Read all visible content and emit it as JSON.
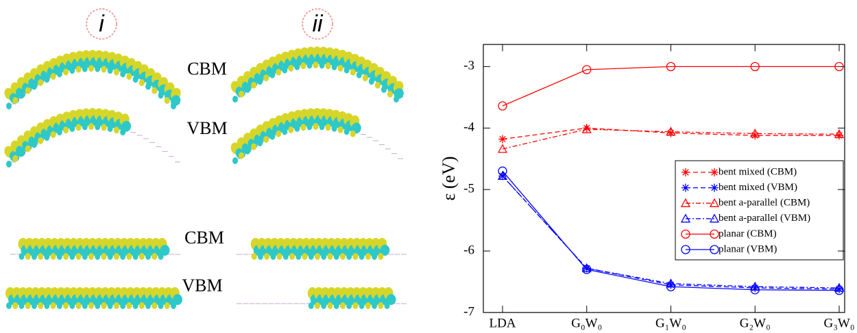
{
  "panel_labels": [
    "i",
    "ii"
  ],
  "orbital_labels": [
    "CBM",
    "VBM",
    "CBM",
    "VBM"
  ],
  "chart_data": {
    "type": "line",
    "y_label": "ε (eV)",
    "categories": [
      "LDA",
      "G₀W₀",
      "G₁W₀",
      "G₂W₀",
      "G₃W₀"
    ],
    "ylim": [
      -7,
      -2.64
    ],
    "yticks": [
      -7,
      -6,
      -5,
      -4,
      -3
    ],
    "legend_position": "right",
    "series": [
      {
        "name": "bent mixed (CBM)",
        "color": "#ff0000",
        "dash": "dashed",
        "marker": "star",
        "values": [
          -4.18,
          -4.0,
          -4.08,
          -4.12,
          -4.12
        ]
      },
      {
        "name": "bent mixed (VBM)",
        "color": "#0000ff",
        "dash": "dashed",
        "marker": "star",
        "values": [
          -4.78,
          -6.28,
          -6.55,
          -6.6,
          -6.62
        ]
      },
      {
        "name": "bent a-parallel (CBM)",
        "color": "#ff0000",
        "dash": "dashdot",
        "marker": "triangle",
        "values": [
          -4.34,
          -4.02,
          -4.06,
          -4.09,
          -4.1
        ]
      },
      {
        "name": "bent a-parallel (VBM)",
        "color": "#0000ff",
        "dash": "dashdot",
        "marker": "triangle",
        "values": [
          -4.78,
          -6.28,
          -6.53,
          -6.58,
          -6.6
        ]
      },
      {
        "name": "planar (CBM)",
        "color": "#ff0000",
        "dash": "solid",
        "marker": "circle",
        "values": [
          -3.64,
          -3.05,
          -3.0,
          -3.0,
          -3.0
        ]
      },
      {
        "name": "planar (VBM)",
        "color": "#0000ff",
        "dash": "solid",
        "marker": "circle",
        "values": [
          -4.7,
          -6.3,
          -6.58,
          -6.63,
          -6.64
        ]
      }
    ]
  }
}
